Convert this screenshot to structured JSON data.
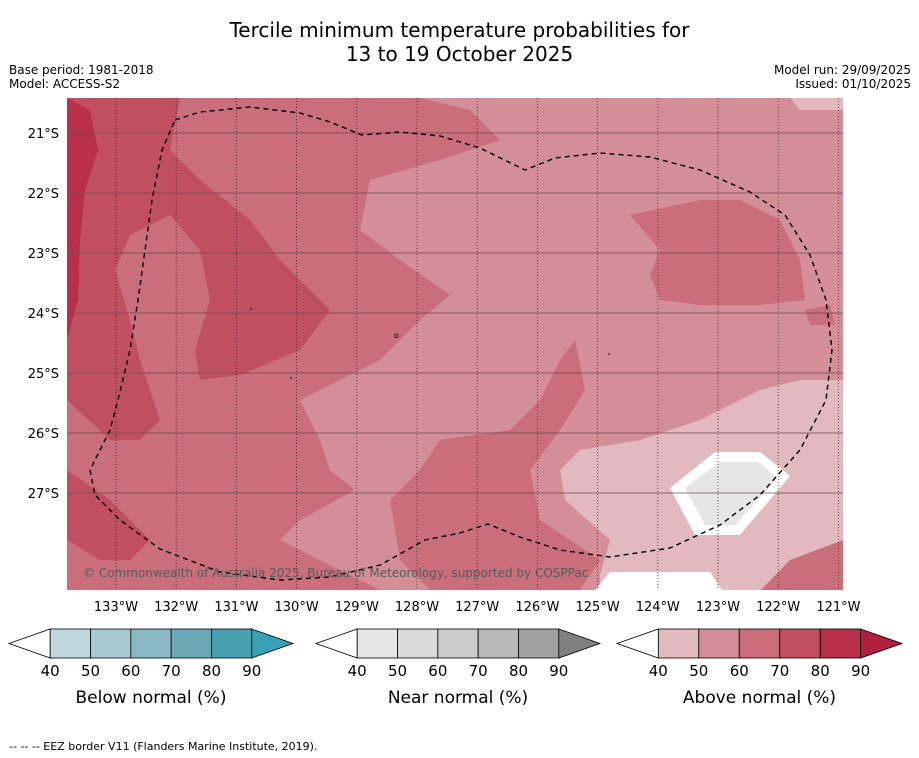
{
  "title": {
    "line1": "Tercile minimum temperature probabilities for",
    "line2": "13 to 19 October 2025"
  },
  "meta": {
    "base_period": "Base period: 1981-2018",
    "model": "Model: ACCESS-S2",
    "model_run": "Model run: 29/09/2025",
    "issued": "Issued: 01/10/2025"
  },
  "map": {
    "copyright": "© Commonwealth of Australia 2025, Bureau of Meteorology, supported by COSPPac",
    "lat_labels": [
      "21°S",
      "22°S",
      "23°S",
      "24°S",
      "25°S",
      "26°S",
      "27°S"
    ],
    "lon_labels": [
      "133°W",
      "132°W",
      "131°W",
      "130°W",
      "129°W",
      "128°W",
      "127°W",
      "126°W",
      "125°W",
      "124°W",
      "123°W",
      "122°W",
      "121°W"
    ]
  },
  "colorbars": [
    {
      "label": "Below normal (%)",
      "ticks": [
        "40",
        "50",
        "60",
        "70",
        "80",
        "90"
      ],
      "colors": [
        "#ffffff",
        "#bfd8de",
        "#a7cad2",
        "#8ab9c4",
        "#6aa9b6",
        "#48a0b0",
        "#3aa0b3"
      ]
    },
    {
      "label": "Near normal (%)",
      "ticks": [
        "40",
        "50",
        "60",
        "70",
        "80",
        "90"
      ],
      "colors": [
        "#ffffff",
        "#e6e6e6",
        "#d9d9d9",
        "#cbcbcb",
        "#b8b8b8",
        "#a0a0a0",
        "#808080"
      ]
    },
    {
      "label": "Above normal (%)",
      "ticks": [
        "40",
        "50",
        "60",
        "70",
        "80",
        "90"
      ],
      "colors": [
        "#ffffff",
        "#e2b9bf",
        "#d48e98",
        "#c96e7a",
        "#c0505f",
        "#b8304a",
        "#b0203f"
      ]
    }
  ],
  "footnote": "--  --  -- EEZ border V11 (Flanders Marine Institute, 2019)."
}
